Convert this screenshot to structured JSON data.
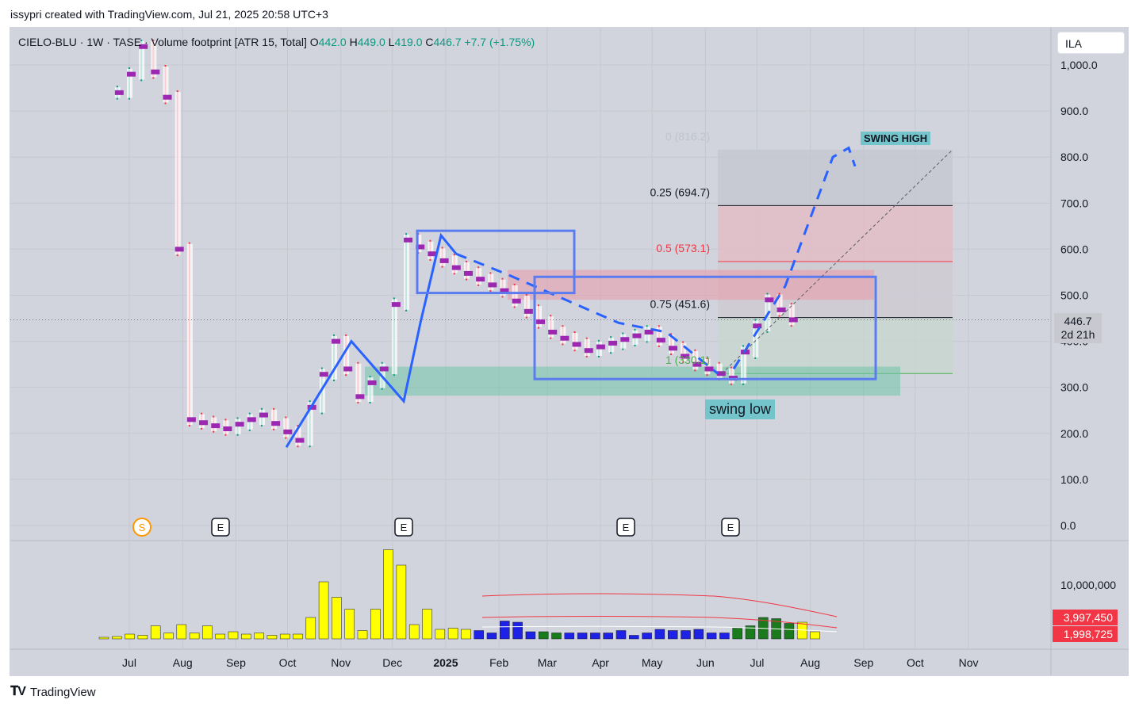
{
  "header": {
    "attribution": "issypri created with TradingView.com, Jul 21, 2025 20:58 UTC+3"
  },
  "legend": {
    "symbol": "CIELO-BLU · 1W · TASE · Volume footprint [ATR 15, Total]",
    "o_label": "O",
    "o_value": "442.0",
    "h_label": "H",
    "h_value": "449.0",
    "l_label": "L",
    "l_value": "419.0",
    "c_label": "C",
    "c_value": "446.7",
    "change": "+7.7 (+1.75%)"
  },
  "currency": "ILA",
  "price_axis": {
    "ticks": [
      "1,000.0",
      "900.0",
      "800.0",
      "700.0",
      "600.0",
      "500.0",
      "400.0",
      "300.0",
      "200.0",
      "100.0",
      "0.0"
    ],
    "last_price": "446.7",
    "countdown": "2d 21h"
  },
  "volume_axis": {
    "tick": "10,000,000",
    "ma_high": "3,997,450",
    "ma_low": "1,998,725"
  },
  "time_axis": {
    "labels": [
      "Jul",
      "Aug",
      "Sep",
      "Oct",
      "Nov",
      "Dec",
      "2025",
      "Feb",
      "Mar",
      "Apr",
      "May",
      "Jun",
      "Jul",
      "Aug",
      "Sep",
      "Oct",
      "Nov"
    ]
  },
  "events": [
    {
      "label": "S",
      "kind": "split"
    },
    {
      "label": "E",
      "kind": "earnings"
    },
    {
      "label": "E",
      "kind": "earnings"
    },
    {
      "label": "E",
      "kind": "earnings"
    },
    {
      "label": "E",
      "kind": "earnings"
    }
  ],
  "fib": [
    {
      "label": "0 (816.2)",
      "level": 816.2,
      "color": "#c0c3cc"
    },
    {
      "label": "0.25 (694.7)",
      "level": 694.7,
      "color": "#131722"
    },
    {
      "label": "0.5 (573.1)",
      "level": 573.1,
      "color": "#f23645"
    },
    {
      "label": "0.75 (451.6)",
      "level": 451.6,
      "color": "#131722"
    },
    {
      "label": "1 (330.1)",
      "level": 330.1,
      "color": "#4caf50"
    }
  ],
  "annotations": {
    "swing_high": "SWING HIGH",
    "swing_low": "swing low"
  },
  "footer": {
    "brand": "TradingView"
  },
  "colors": {
    "up": "#089981",
    "down": "#f23645",
    "footprint": "#9c27b0",
    "vol_yellow": "#ffff00",
    "vol_blue": "#1e22e6",
    "vol_green": "#1b7a1b",
    "drawing_blue": "#2962ff",
    "background": "#d1d4dc"
  },
  "chart_data": {
    "type": "candlestick",
    "interval": "1W",
    "ylim": [
      0,
      1000
    ],
    "last_close": 446.7,
    "price_path": [
      {
        "x": "2024-06-24",
        "close": 940
      },
      {
        "x": "2024-07-01",
        "close": 980
      },
      {
        "x": "2024-07-08",
        "close": 1040
      },
      {
        "x": "2024-07-22",
        "close": 930
      },
      {
        "x": "2024-07-29",
        "close": 600
      },
      {
        "x": "2024-08-05",
        "close": 230
      },
      {
        "x": "2024-08-26",
        "close": 210
      },
      {
        "x": "2024-09-16",
        "close": 240
      },
      {
        "x": "2024-10-07",
        "close": 185
      },
      {
        "x": "2024-10-28",
        "close": 400
      },
      {
        "x": "2024-11-11",
        "close": 280
      },
      {
        "x": "2024-11-25",
        "close": 340
      },
      {
        "x": "2024-12-09",
        "close": 620
      },
      {
        "x": "2025-01-06",
        "close": 560
      },
      {
        "x": "2025-02-03",
        "close": 510
      },
      {
        "x": "2025-03-03",
        "close": 420
      },
      {
        "x": "2025-03-24",
        "close": 380
      },
      {
        "x": "2025-04-28",
        "close": 420
      },
      {
        "x": "2025-05-26",
        "close": 350
      },
      {
        "x": "2025-06-16",
        "close": 320
      },
      {
        "x": "2025-07-07",
        "close": 490
      },
      {
        "x": "2025-07-21",
        "close": 446.7
      }
    ],
    "volume_relative": [
      0.01,
      0.02,
      0.04,
      0.03,
      0.11,
      0.05,
      0.12,
      0.05,
      0.11,
      0.04,
      0.06,
      0.04,
      0.05,
      0.03,
      0.04,
      0.04,
      0.18,
      0.48,
      0.35,
      0.25,
      0.07,
      0.25,
      0.75,
      0.62,
      0.12,
      0.25,
      0.08,
      0.09,
      0.08,
      0.07,
      0.05,
      0.15,
      0.14,
      0.06,
      0.06,
      0.05,
      0.05,
      0.05,
      0.05,
      0.05,
      0.07,
      0.03,
      0.05,
      0.08,
      0.07,
      0.07,
      0.08,
      0.05,
      0.05,
      0.09,
      0.11,
      0.18,
      0.17,
      0.13,
      0.14,
      0.06
    ]
  }
}
